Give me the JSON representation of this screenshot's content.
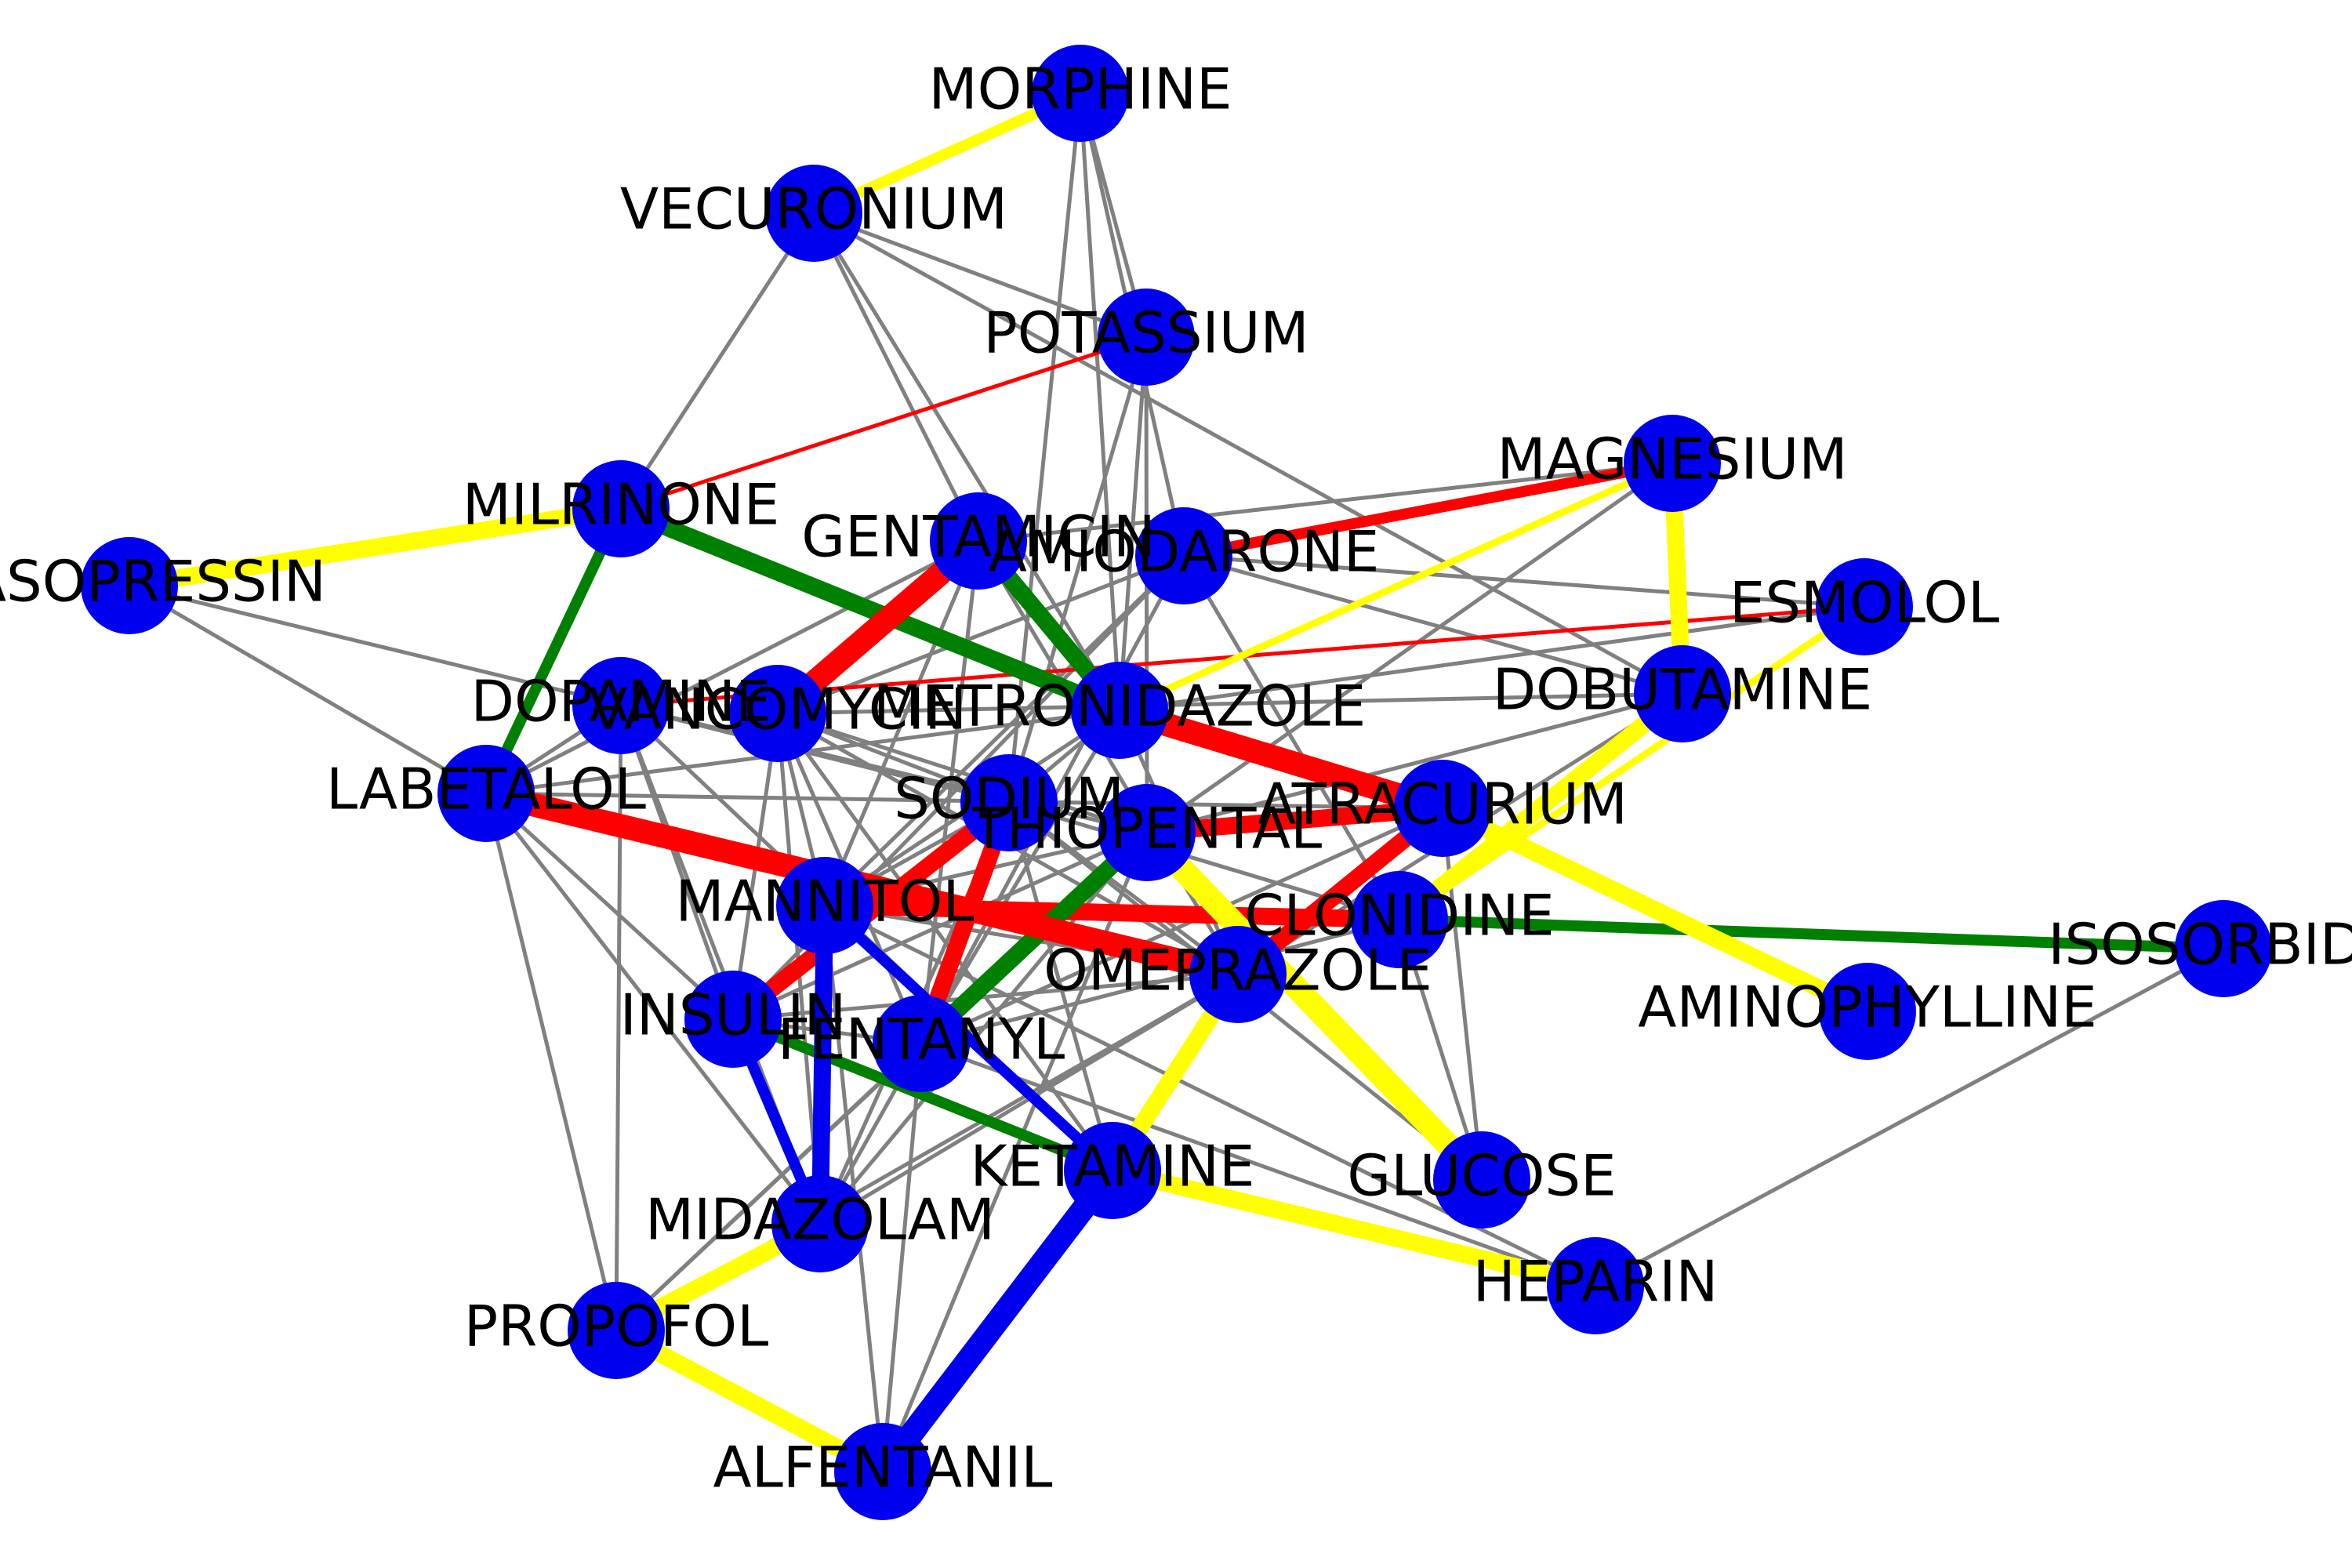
{
  "colors": {
    "node": "#0000ee",
    "grey": "#808080",
    "red": "#ff0000",
    "green": "#008000",
    "yellow": "#ffff00",
    "blue": "#0000ee",
    "label": "#000000"
  },
  "nodes": [
    {
      "id": "MORPHINE",
      "label": "MORPHINE"
    },
    {
      "id": "VECURONIUM",
      "label": "VECURONIUM"
    },
    {
      "id": "POTASSIUM",
      "label": "POTASSIUM"
    },
    {
      "id": "MAGNESIUM",
      "label": "MAGNESIUM"
    },
    {
      "id": "MILRINONE",
      "label": "MILRINONE"
    },
    {
      "id": "VASOPRESSIN",
      "label": "VASOPRESSIN"
    },
    {
      "id": "GENTAMICIN",
      "label": "GENTAMICIN"
    },
    {
      "id": "AMIODARONE",
      "label": "AMIODARONE"
    },
    {
      "id": "ESMOLOL",
      "label": "ESMOLOL"
    },
    {
      "id": "DOBUTAMINE",
      "label": "DOBUTAMINE"
    },
    {
      "id": "DOPAMINE",
      "label": "DOPAMINE"
    },
    {
      "id": "VANCOMYCIN",
      "label": "VANCOMYCIN"
    },
    {
      "id": "METRONIDAZOLE",
      "label": "METRONIDAZOLE"
    },
    {
      "id": "LABETALOL",
      "label": "LABETALOL"
    },
    {
      "id": "SODIUM",
      "label": "SODIUM"
    },
    {
      "id": "THIOPENTAL",
      "label": "THIOPENTAL"
    },
    {
      "id": "ATRACURIUM",
      "label": "ATRACURIUM"
    },
    {
      "id": "MANNITOL",
      "label": "MANNITOL"
    },
    {
      "id": "CLONIDINE",
      "label": "CLONIDINE"
    },
    {
      "id": "ISOSORBIDE",
      "label": "ISOSORBIDE"
    },
    {
      "id": "OMEPRAZOLE",
      "label": "OMEPRAZOLE"
    },
    {
      "id": "AMINOPHYLLINE",
      "label": "AMINOPHYLLINE"
    },
    {
      "id": "INSULIN",
      "label": "INSULIN"
    },
    {
      "id": "FENTANYL",
      "label": "FENTANYL"
    },
    {
      "id": "KETAMINE",
      "label": "KETAMINE"
    },
    {
      "id": "GLUCOSE",
      "label": "GLUCOSE"
    },
    {
      "id": "MIDAZOLAM",
      "label": "MIDAZOLAM"
    },
    {
      "id": "HEPARIN",
      "label": "HEPARIN"
    },
    {
      "id": "PROPOFOL",
      "label": "PROPOFOL"
    },
    {
      "id": "ALFENTANIL",
      "label": "ALFENTANIL"
    }
  ],
  "edges": [
    {
      "s": "MORPHINE",
      "t": "VECURONIUM",
      "kind": "yellow",
      "weight": 3
    },
    {
      "s": "MILRINONE",
      "t": "VASOPRESSIN",
      "kind": "yellow",
      "weight": 4
    },
    {
      "s": "MAGNESIUM",
      "t": "DOBUTAMINE",
      "kind": "yellow",
      "weight": 4
    },
    {
      "s": "MAGNESIUM",
      "t": "METRONIDAZOLE",
      "kind": "yellow",
      "weight": 2
    },
    {
      "s": "ESMOLOL",
      "t": "CLONIDINE",
      "kind": "yellow",
      "weight": 2
    },
    {
      "s": "DOBUTAMINE",
      "t": "CLONIDINE",
      "kind": "yellow",
      "weight": 4
    },
    {
      "s": "ATRACURIUM",
      "t": "AMINOPHYLLINE",
      "kind": "yellow",
      "weight": 4
    },
    {
      "s": "THIOPENTAL",
      "t": "GLUCOSE",
      "kind": "yellow",
      "weight": 5
    },
    {
      "s": "OMEPRAZOLE",
      "t": "KETAMINE",
      "kind": "yellow",
      "weight": 4
    },
    {
      "s": "KETAMINE",
      "t": "HEPARIN",
      "kind": "yellow",
      "weight": 4
    },
    {
      "s": "MIDAZOLAM",
      "t": "PROPOFOL",
      "kind": "yellow",
      "weight": 4
    },
    {
      "s": "PROPOFOL",
      "t": "ALFENTANIL",
      "kind": "yellow",
      "weight": 4
    },
    {
      "s": "MAGNESIUM",
      "t": "AMIODARONE",
      "kind": "red",
      "weight": 3
    },
    {
      "s": "GENTAMICIN",
      "t": "VANCOMYCIN",
      "kind": "red",
      "weight": 5
    },
    {
      "s": "METRONIDAZOLE",
      "t": "ATRACURIUM",
      "kind": "red",
      "weight": 5
    },
    {
      "s": "LABETALOL",
      "t": "OMEPRAZOLE",
      "kind": "red",
      "weight": 5
    },
    {
      "s": "THIOPENTAL",
      "t": "ATRACURIUM",
      "kind": "red",
      "weight": 4
    },
    {
      "s": "ATRACURIUM",
      "t": "OMEPRAZOLE",
      "kind": "red",
      "weight": 4
    },
    {
      "s": "SODIUM",
      "t": "INSULIN",
      "kind": "red",
      "weight": 4
    },
    {
      "s": "MANNITOL",
      "t": "CLONIDINE",
      "kind": "red",
      "weight": 4
    },
    {
      "s": "SODIUM",
      "t": "FENTANYL",
      "kind": "red",
      "weight": 4
    },
    {
      "s": "MILRINONE",
      "t": "POTASSIUM",
      "kind": "red",
      "weight": 1
    },
    {
      "s": "DOPAMINE",
      "t": "ESMOLOL",
      "kind": "red",
      "weight": 1
    },
    {
      "s": "MILRINONE",
      "t": "LABETALOL",
      "kind": "green",
      "weight": 3
    },
    {
      "s": "MILRINONE",
      "t": "METRONIDAZOLE",
      "kind": "green",
      "weight": 4
    },
    {
      "s": "GENTAMICIN",
      "t": "METRONIDAZOLE",
      "kind": "green",
      "weight": 4
    },
    {
      "s": "CLONIDINE",
      "t": "ISOSORBIDE",
      "kind": "green",
      "weight": 3
    },
    {
      "s": "INSULIN",
      "t": "KETAMINE",
      "kind": "green",
      "weight": 3
    },
    {
      "s": "THIOPENTAL",
      "t": "FENTANYL",
      "kind": "green",
      "weight": 4
    },
    {
      "s": "MANNITOL",
      "t": "KETAMINE",
      "kind": "blue",
      "weight": 3
    },
    {
      "s": "MANNITOL",
      "t": "MIDAZOLAM",
      "kind": "blue",
      "weight": 4
    },
    {
      "s": "INSULIN",
      "t": "MIDAZOLAM",
      "kind": "blue",
      "weight": 3
    },
    {
      "s": "KETAMINE",
      "t": "ALFENTANIL",
      "kind": "blue",
      "weight": 5
    },
    {
      "s": "MORPHINE",
      "t": "POTASSIUM",
      "kind": "grey",
      "weight": 1
    },
    {
      "s": "MORPHINE",
      "t": "AMIODARONE",
      "kind": "grey",
      "weight": 1
    },
    {
      "s": "MORPHINE",
      "t": "SODIUM",
      "kind": "grey",
      "weight": 1
    },
    {
      "s": "MORPHINE",
      "t": "METRONIDAZOLE",
      "kind": "grey",
      "weight": 1
    },
    {
      "s": "VECURONIUM",
      "t": "POTASSIUM",
      "kind": "grey",
      "weight": 1
    },
    {
      "s": "VECURONIUM",
      "t": "MILRINONE",
      "kind": "grey",
      "weight": 1
    },
    {
      "s": "VECURONIUM",
      "t": "GENTAMICIN",
      "kind": "grey",
      "weight": 1
    },
    {
      "s": "VECURONIUM",
      "t": "METRONIDAZOLE",
      "kind": "grey",
      "weight": 1
    },
    {
      "s": "VECURONIUM",
      "t": "DOBUTAMINE",
      "kind": "grey",
      "weight": 1
    },
    {
      "s": "POTASSIUM",
      "t": "SODIUM",
      "kind": "grey",
      "weight": 1
    },
    {
      "s": "POTASSIUM",
      "t": "THIOPENTAL",
      "kind": "grey",
      "weight": 1
    },
    {
      "s": "POTASSIUM",
      "t": "METRONIDAZOLE",
      "kind": "grey",
      "weight": 1
    },
    {
      "s": "MAGNESIUM",
      "t": "GENTAMICIN",
      "kind": "grey",
      "weight": 1
    },
    {
      "s": "MAGNESIUM",
      "t": "THIOPENTAL",
      "kind": "grey",
      "weight": 1
    },
    {
      "s": "AMIODARONE",
      "t": "ESMOLOL",
      "kind": "grey",
      "weight": 1
    },
    {
      "s": "AMIODARONE",
      "t": "DOBUTAMINE",
      "kind": "grey",
      "weight": 1
    },
    {
      "s": "AMIODARONE",
      "t": "MANNITOL",
      "kind": "grey",
      "weight": 1
    },
    {
      "s": "AMIODARONE",
      "t": "FENTANYL",
      "kind": "grey",
      "weight": 1
    },
    {
      "s": "AMIODARONE",
      "t": "VANCOMYCIN",
      "kind": "grey",
      "weight": 1
    },
    {
      "s": "AMIODARONE",
      "t": "CLONIDINE",
      "kind": "grey",
      "weight": 1
    },
    {
      "s": "AMIODARONE",
      "t": "INSULIN",
      "kind": "grey",
      "weight": 1
    },
    {
      "s": "GENTAMICIN",
      "t": "MANNITOL",
      "kind": "grey",
      "weight": 1
    },
    {
      "s": "GENTAMICIN",
      "t": "FENTANYL",
      "kind": "grey",
      "weight": 1
    },
    {
      "s": "GENTAMICIN",
      "t": "OMEPRAZOLE",
      "kind": "grey",
      "weight": 1
    },
    {
      "s": "GENTAMICIN",
      "t": "LABETALOL",
      "kind": "grey",
      "weight": 1
    },
    {
      "s": "VASOPRESSIN",
      "t": "LABETALOL",
      "kind": "grey",
      "weight": 1
    },
    {
      "s": "VASOPRESSIN",
      "t": "THIOPENTAL",
      "kind": "grey",
      "weight": 1
    },
    {
      "s": "DOBUTAMINE",
      "t": "VANCOMYCIN",
      "kind": "grey",
      "weight": 1
    },
    {
      "s": "DOBUTAMINE",
      "t": "THIOPENTAL",
      "kind": "grey",
      "weight": 1
    },
    {
      "s": "DOBUTAMINE",
      "t": "OMEPRAZOLE",
      "kind": "grey",
      "weight": 1
    },
    {
      "s": "ESMOLOL",
      "t": "METRONIDAZOLE",
      "kind": "grey",
      "weight": 1
    },
    {
      "s": "DOPAMINE",
      "t": "INSULIN",
      "kind": "grey",
      "weight": 1
    },
    {
      "s": "DOPAMINE",
      "t": "KETAMINE",
      "kind": "grey",
      "weight": 1
    },
    {
      "s": "DOPAMINE",
      "t": "SODIUM",
      "kind": "grey",
      "weight": 1
    },
    {
      "s": "DOPAMINE",
      "t": "MIDAZOLAM",
      "kind": "grey",
      "weight": 1
    },
    {
      "s": "DOPAMINE",
      "t": "PROPOFOL",
      "kind": "grey",
      "weight": 1
    },
    {
      "s": "VANCOMYCIN",
      "t": "SODIUM",
      "kind": "grey",
      "weight": 1
    },
    {
      "s": "VANCOMYCIN",
      "t": "THIOPENTAL",
      "kind": "grey",
      "weight": 1
    },
    {
      "s": "VANCOMYCIN",
      "t": "MANNITOL",
      "kind": "grey",
      "weight": 1
    },
    {
      "s": "VANCOMYCIN",
      "t": "OMEPRAZOLE",
      "kind": "grey",
      "weight": 1
    },
    {
      "s": "VANCOMYCIN",
      "t": "INSULIN",
      "kind": "grey",
      "weight": 1
    },
    {
      "s": "VANCOMYCIN",
      "t": "FENTANYL",
      "kind": "grey",
      "weight": 1
    },
    {
      "s": "VANCOMYCIN",
      "t": "MIDAZOLAM",
      "kind": "grey",
      "weight": 1
    },
    {
      "s": "VANCOMYCIN",
      "t": "KETAMINE",
      "kind": "grey",
      "weight": 1
    },
    {
      "s": "METRONIDAZOLE",
      "t": "SODIUM",
      "kind": "grey",
      "weight": 1
    },
    {
      "s": "METRONIDAZOLE",
      "t": "MANNITOL",
      "kind": "grey",
      "weight": 1
    },
    {
      "s": "METRONIDAZOLE",
      "t": "OMEPRAZOLE",
      "kind": "grey",
      "weight": 1
    },
    {
      "s": "METRONIDAZOLE",
      "t": "FENTANYL",
      "kind": "grey",
      "weight": 1
    },
    {
      "s": "METRONIDAZOLE",
      "t": "LABETALOL",
      "kind": "grey",
      "weight": 1
    },
    {
      "s": "LABETALOL",
      "t": "ATRACURIUM",
      "kind": "grey",
      "weight": 1
    },
    {
      "s": "LABETALOL",
      "t": "INSULIN",
      "kind": "grey",
      "weight": 1
    },
    {
      "s": "LABETALOL",
      "t": "MIDAZOLAM",
      "kind": "grey",
      "weight": 1
    },
    {
      "s": "LABETALOL",
      "t": "PROPOFOL",
      "kind": "grey",
      "weight": 1
    },
    {
      "s": "LABETALOL",
      "t": "DOPAMINE",
      "kind": "grey",
      "weight": 1
    },
    {
      "s": "SODIUM",
      "t": "MANNITOL",
      "kind": "grey",
      "weight": 1
    },
    {
      "s": "SODIUM",
      "t": "OMEPRAZOLE",
      "kind": "grey",
      "weight": 1
    },
    {
      "s": "SODIUM",
      "t": "CLONIDINE",
      "kind": "grey",
      "weight": 1
    },
    {
      "s": "SODIUM",
      "t": "KETAMINE",
      "kind": "grey",
      "weight": 1
    },
    {
      "s": "SODIUM",
      "t": "MIDAZOLAM",
      "kind": "grey",
      "weight": 1
    },
    {
      "s": "SODIUM",
      "t": "GLUCOSE",
      "kind": "grey",
      "weight": 1
    },
    {
      "s": "THIOPENTAL",
      "t": "MANNITOL",
      "kind": "grey",
      "weight": 1
    },
    {
      "s": "THIOPENTAL",
      "t": "INSULIN",
      "kind": "grey",
      "weight": 1
    },
    {
      "s": "THIOPENTAL",
      "t": "MIDAZOLAM",
      "kind": "grey",
      "weight": 1
    },
    {
      "s": "THIOPENTAL",
      "t": "ALFENTANIL",
      "kind": "grey",
      "weight": 1
    },
    {
      "s": "THIOPENTAL",
      "t": "PROPOFOL",
      "kind": "grey",
      "weight": 1
    },
    {
      "s": "ATRACURIUM",
      "t": "GLUCOSE",
      "kind": "grey",
      "weight": 1
    },
    {
      "s": "ATRACURIUM",
      "t": "FENTANYL",
      "kind": "grey",
      "weight": 1
    },
    {
      "s": "MANNITOL",
      "t": "OMEPRAZOLE",
      "kind": "grey",
      "weight": 1
    },
    {
      "s": "MANNITOL",
      "t": "HEPARIN",
      "kind": "grey",
      "weight": 1
    },
    {
      "s": "MANNITOL",
      "t": "ALFENTANIL",
      "kind": "grey",
      "weight": 1
    },
    {
      "s": "CLONIDINE",
      "t": "FENTANYL",
      "kind": "grey",
      "weight": 1
    },
    {
      "s": "CLONIDINE",
      "t": "GLUCOSE",
      "kind": "grey",
      "weight": 1
    },
    {
      "s": "ISOSORBIDE",
      "t": "HEPARIN",
      "kind": "grey",
      "weight": 1
    },
    {
      "s": "OMEPRAZOLE",
      "t": "MIDAZOLAM",
      "kind": "grey",
      "weight": 1
    },
    {
      "s": "OMEPRAZOLE",
      "t": "PROPOFOL",
      "kind": "grey",
      "weight": 1
    },
    {
      "s": "OMEPRAZOLE",
      "t": "INSULIN",
      "kind": "grey",
      "weight": 1
    },
    {
      "s": "INSULIN",
      "t": "FENTANYL",
      "kind": "grey",
      "weight": 1
    },
    {
      "s": "FENTANYL",
      "t": "MIDAZOLAM",
      "kind": "grey",
      "weight": 1
    },
    {
      "s": "FENTANYL",
      "t": "PROPOFOL",
      "kind": "grey",
      "weight": 1
    },
    {
      "s": "FENTANYL",
      "t": "ALFENTANIL",
      "kind": "grey",
      "weight": 1
    },
    {
      "s": "FENTANYL",
      "t": "HEPARIN",
      "kind": "grey",
      "weight": 1
    }
  ]
}
